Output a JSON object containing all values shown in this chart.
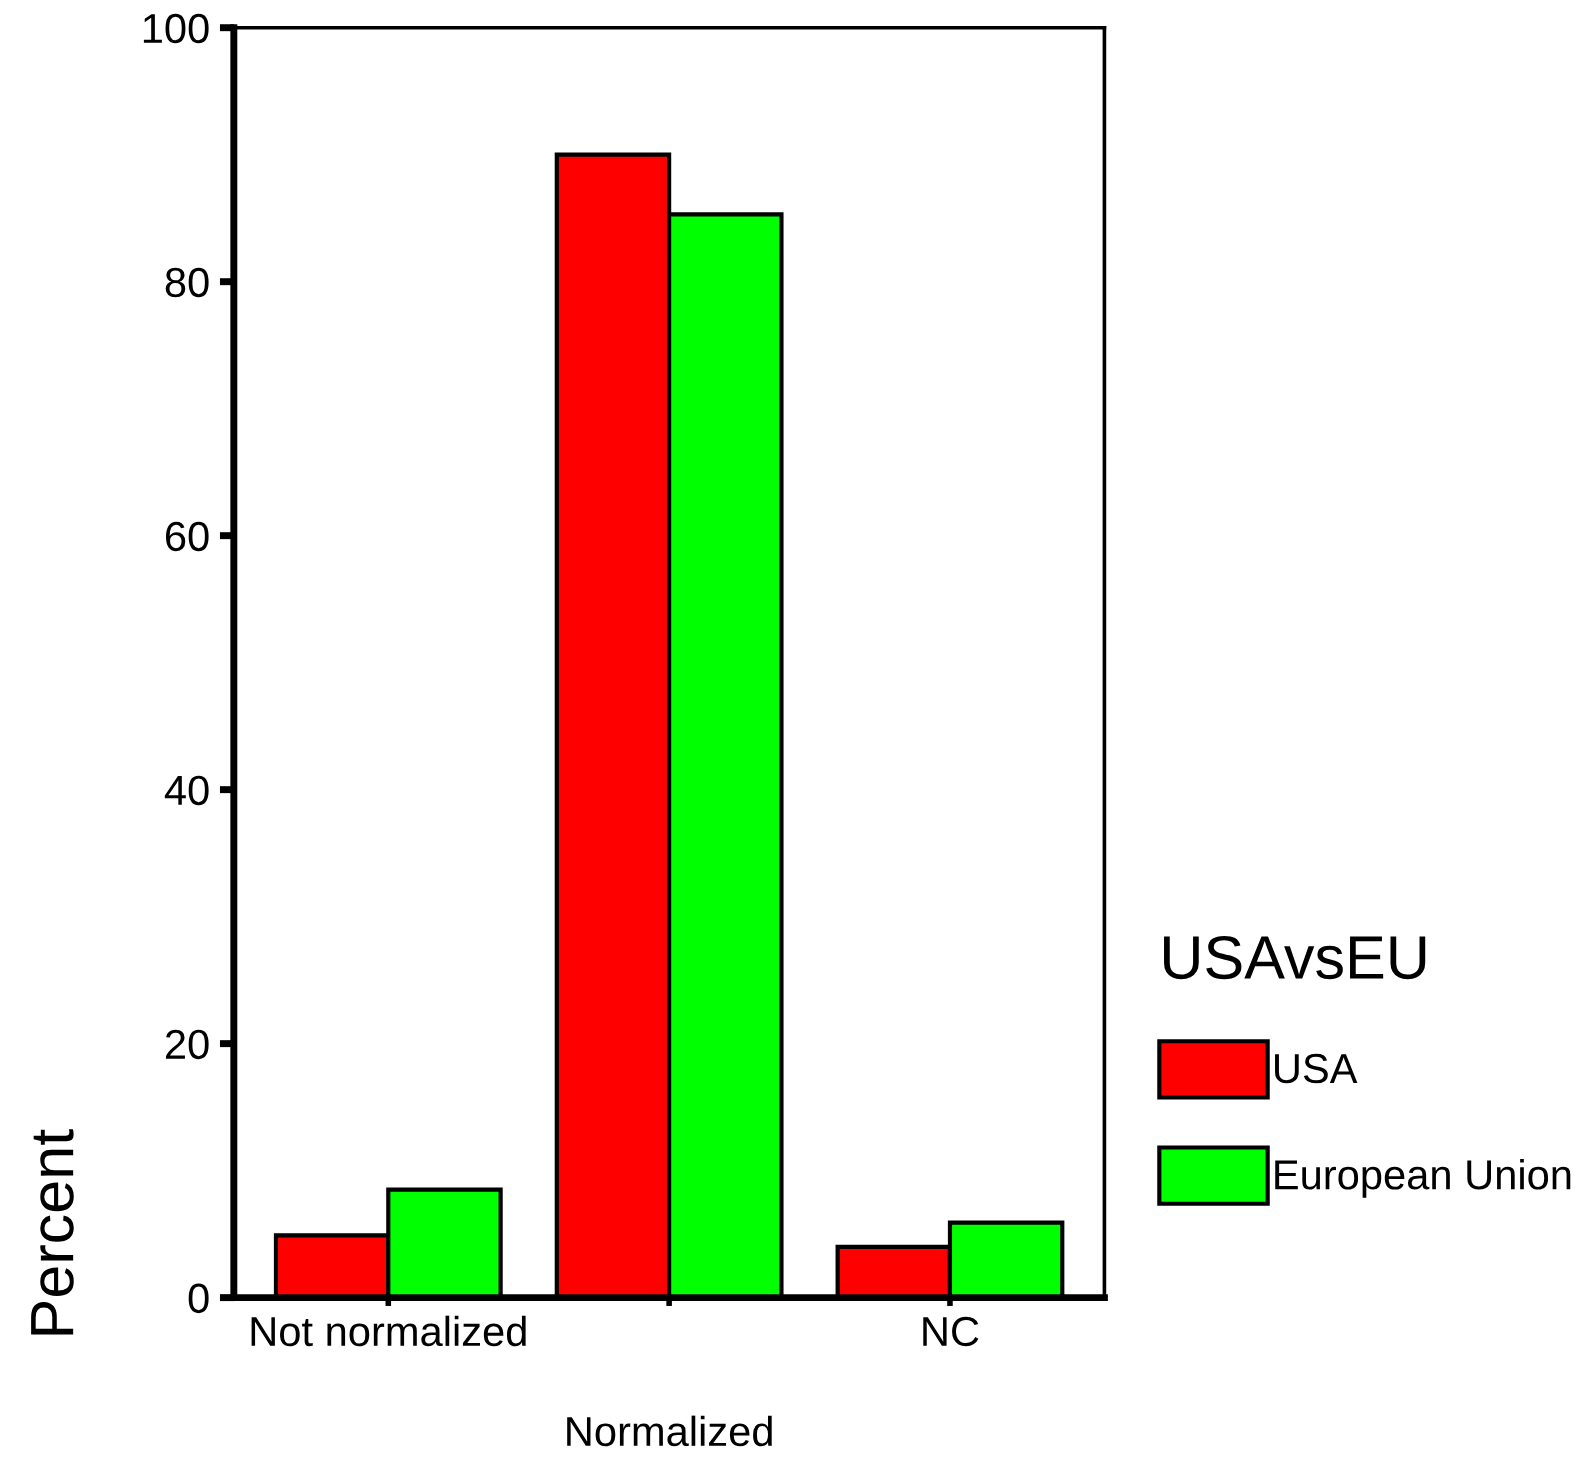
{
  "chart_data": {
    "type": "bar",
    "categories": [
      "Not normalized",
      null,
      "NC"
    ],
    "xlabel": "Normalized",
    "ylabel": "Percent",
    "legend_title": "USAvsEU",
    "series": [
      {
        "name": "USA",
        "color": "#ff0000",
        "values": [
          4.9,
          90.0,
          4.0
        ]
      },
      {
        "name": "European Union",
        "color": "#00ff00",
        "values": [
          8.5,
          85.3,
          5.9
        ]
      }
    ],
    "ylim": [
      0,
      100
    ],
    "yticks": [
      0,
      20,
      40,
      60,
      80,
      100
    ],
    "grid": false,
    "legend": "right"
  }
}
